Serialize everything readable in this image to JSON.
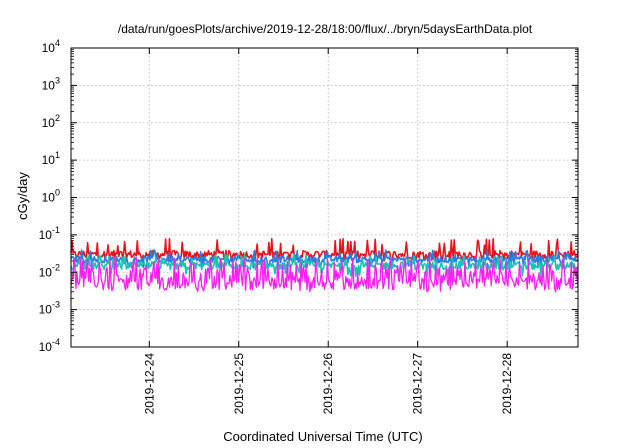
{
  "chart_data": {
    "type": "line",
    "title": "/data/run/goesPlots/archive/2019-12-28/18:00/flux/../bryn/5daysEarthData.plot",
    "xlabel": "Coordinated Universal Time (UTC)",
    "ylabel": "cGy/day",
    "yscale": "log",
    "ylim": [
      0.0001,
      10000
    ],
    "y_ticks": [
      {
        "base": "10",
        "exp": "-4",
        "value": 0.0001
      },
      {
        "base": "10",
        "exp": "-3",
        "value": 0.001
      },
      {
        "base": "10",
        "exp": "-2",
        "value": 0.01
      },
      {
        "base": "10",
        "exp": "-1",
        "value": 0.1
      },
      {
        "base": "10",
        "exp": "0",
        "value": 1
      },
      {
        "base": "10",
        "exp": "1",
        "value": 10
      },
      {
        "base": "10",
        "exp": "2",
        "value": 100
      },
      {
        "base": "10",
        "exp": "3",
        "value": 1000
      },
      {
        "base": "10",
        "exp": "4",
        "value": 10000
      }
    ],
    "xlim": [
      "2019-12-23T03:00",
      "2019-12-28T19:00"
    ],
    "x_ticks": [
      "2019-12-24",
      "2019-12-25",
      "2019-12-26",
      "2019-12-27",
      "2019-12-28"
    ],
    "grid": true,
    "series": [
      {
        "color": "#e8141c",
        "level": 0.03,
        "min": 0.02,
        "max": 0.08
      },
      {
        "color": "#2a7de1",
        "level": 0.022,
        "min": 0.013,
        "max": 0.04
      },
      {
        "color": "#19c4b0",
        "level": 0.015,
        "min": 0.007,
        "max": 0.03
      },
      {
        "color": "#ff1ff5",
        "level": 0.005,
        "min": 0.003,
        "max": 0.025
      }
    ]
  }
}
